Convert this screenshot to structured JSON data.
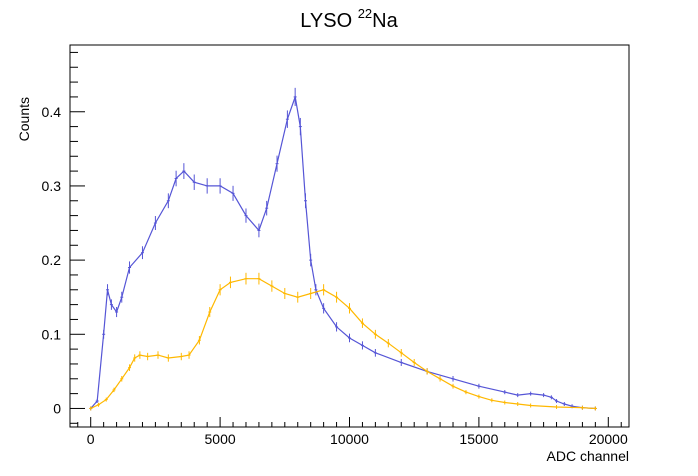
{
  "chart_data": {
    "type": "scatter",
    "title_main": "LYSO ",
    "title_sup": "22",
    "title_rest": "Na",
    "xlabel": "ADC channel",
    "ylabel": "Counts",
    "xlim": [
      -800,
      20800
    ],
    "ylim": [
      -0.025,
      0.49
    ],
    "x_ticks": [
      0,
      5000,
      10000,
      15000,
      20000
    ],
    "x_tick_labels": [
      "0",
      "5000",
      "10000",
      "15000",
      "20000"
    ],
    "y_ticks": [
      0,
      0.1,
      0.2,
      0.3,
      0.4
    ],
    "y_tick_labels": [
      "0",
      "0.1",
      "0.2",
      "0.3",
      "0.4"
    ],
    "grid": false,
    "series": [
      {
        "color": "#5555d6",
        "marker": "error-bar",
        "x": [
          0,
          250,
          500,
          650,
          800,
          1000,
          1200,
          1500,
          2000,
          2500,
          3000,
          3300,
          3600,
          4000,
          4500,
          5000,
          5500,
          6000,
          6500,
          6800,
          7200,
          7600,
          7900,
          8100,
          8300,
          8500,
          8700,
          9000,
          9500,
          10000,
          10500,
          11000,
          12000,
          13000,
          14000,
          15000,
          16000,
          16500,
          17000,
          17500,
          17800,
          18000,
          18300,
          18600,
          19000,
          19500
        ],
        "y": [
          0,
          0.01,
          0.1,
          0.16,
          0.14,
          0.13,
          0.15,
          0.19,
          0.21,
          0.25,
          0.28,
          0.31,
          0.32,
          0.305,
          0.3,
          0.3,
          0.29,
          0.26,
          0.24,
          0.27,
          0.33,
          0.39,
          0.42,
          0.38,
          0.28,
          0.2,
          0.16,
          0.135,
          0.11,
          0.095,
          0.085,
          0.075,
          0.062,
          0.05,
          0.04,
          0.03,
          0.022,
          0.018,
          0.02,
          0.018,
          0.015,
          0.01,
          0.006,
          0.003,
          0.001,
          0.0
        ]
      },
      {
        "color": "#ffb800",
        "marker": "error-bar",
        "x": [
          0,
          300,
          600,
          900,
          1200,
          1500,
          1700,
          1900,
          2200,
          2600,
          3000,
          3500,
          3800,
          4200,
          4600,
          5000,
          5400,
          6000,
          6500,
          7000,
          7500,
          8000,
          8500,
          9000,
          9500,
          10000,
          10500,
          11000,
          11500,
          12000,
          12500,
          13000,
          13500,
          14000,
          14500,
          15000,
          15500,
          16000,
          16500,
          17000,
          18000,
          19000,
          19500
        ],
        "y": [
          0,
          0.005,
          0.012,
          0.025,
          0.04,
          0.055,
          0.068,
          0.072,
          0.07,
          0.072,
          0.068,
          0.07,
          0.072,
          0.092,
          0.13,
          0.16,
          0.17,
          0.175,
          0.175,
          0.165,
          0.155,
          0.15,
          0.155,
          0.16,
          0.15,
          0.135,
          0.115,
          0.1,
          0.088,
          0.075,
          0.062,
          0.05,
          0.04,
          0.03,
          0.022,
          0.016,
          0.011,
          0.008,
          0.006,
          0.004,
          0.002,
          0.001,
          0.0
        ]
      }
    ]
  }
}
